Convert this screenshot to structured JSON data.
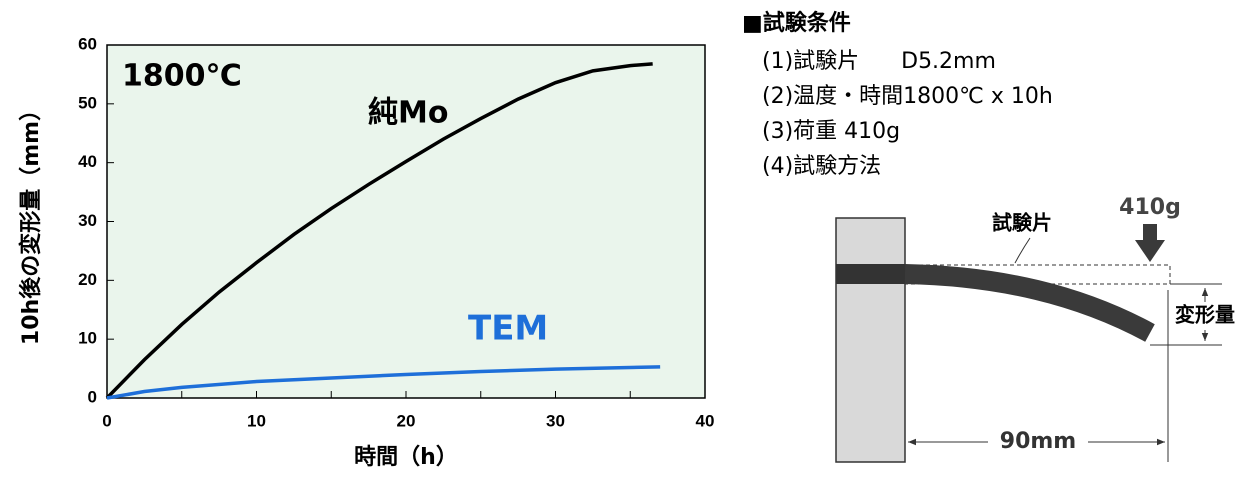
{
  "chart_data": {
    "type": "line",
    "annotation": "1800℃",
    "x_label": "時間（h）",
    "y_label": "10h後の変形量（mm）",
    "background": "#eaf5ec",
    "xlim": [
      0,
      40
    ],
    "xticks": [
      0,
      10,
      20,
      30,
      40
    ],
    "xminorticks": [
      5,
      15,
      25,
      35
    ],
    "ylim": [
      0,
      60
    ],
    "yticks": [
      0,
      10,
      20,
      30,
      40,
      50,
      60
    ],
    "series": [
      {
        "name": "純Mo",
        "color": "#000000",
        "x": [
          0,
          2.5,
          5,
          7.5,
          10,
          12.5,
          15,
          17.5,
          20,
          22.5,
          25,
          27.5,
          30,
          32.5,
          35,
          36.5
        ],
        "values": [
          0,
          6.5,
          12.5,
          18,
          23,
          27.8,
          32.2,
          36.3,
          40.2,
          44,
          47.5,
          50.8,
          53.6,
          55.6,
          56.5,
          56.8
        ]
      },
      {
        "name": "TEM",
        "color": "#1e6fd9",
        "x": [
          0,
          2.5,
          5,
          10,
          15,
          20,
          25,
          30,
          37
        ],
        "values": [
          0,
          1.1,
          1.8,
          2.8,
          3.4,
          4,
          4.5,
          4.9,
          5.3
        ]
      }
    ]
  },
  "panel": {
    "title": "■試験条件",
    "items": [
      "(1)試験片      D5.2mm",
      "(2)温度・時間1800℃ x 10h",
      "(3)荷重 410g",
      "(4)試験方法"
    ],
    "diagram": {
      "specimen": "試験片",
      "load": "410g",
      "deflection": "変形量",
      "length": "90mm"
    }
  }
}
